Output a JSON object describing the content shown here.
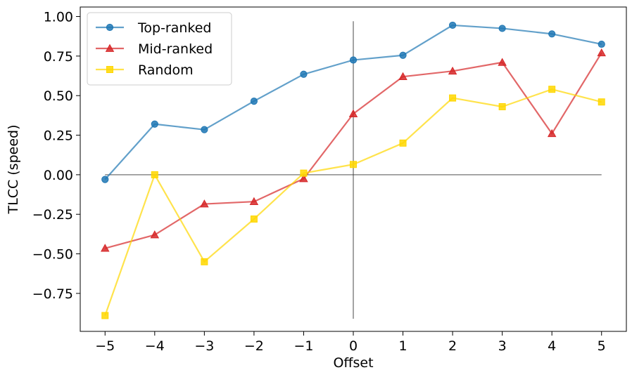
{
  "chart_data": {
    "type": "line",
    "xlabel": "Offset",
    "ylabel": "TLCC (speed)",
    "x": [
      -5,
      -4,
      -3,
      -2,
      -1,
      0,
      1,
      2,
      3,
      4,
      5
    ],
    "x_tick_labels": [
      "−5",
      "−4",
      "−3",
      "−2",
      "−1",
      "0",
      "1",
      "2",
      "3",
      "4",
      "5"
    ],
    "y_ticks": [
      -0.75,
      -0.5,
      -0.25,
      0.0,
      0.25,
      0.5,
      0.75,
      1.0
    ],
    "y_tick_labels": [
      "−0.75",
      "−0.50",
      "−0.25",
      "0.00",
      "0.25",
      "0.50",
      "0.75",
      "1.00"
    ],
    "xlim": [
      -5.5,
      5.5
    ],
    "ylim": [
      -0.99,
      1.06
    ],
    "grid": false,
    "legend_position": "top-left",
    "reference_lines": {
      "horizontal_y": 0.0,
      "vertical_x": 0,
      "color": "#333333"
    },
    "series": [
      {
        "name": "Top-ranked",
        "color": "#1f77b4",
        "marker": "circle",
        "values": [
          -0.03,
          0.32,
          0.285,
          0.465,
          0.635,
          0.725,
          0.755,
          0.945,
          0.925,
          0.89,
          0.825
        ]
      },
      {
        "name": "Mid-ranked",
        "color": "#d62728",
        "marker": "triangle",
        "values": [
          -0.465,
          -0.38,
          -0.185,
          -0.17,
          -0.025,
          0.385,
          0.62,
          0.655,
          0.71,
          0.26,
          0.77
        ]
      },
      {
        "name": "Random",
        "color": "#ffd700",
        "marker": "square",
        "values": [
          -0.89,
          0.0,
          -0.55,
          -0.28,
          0.01,
          0.065,
          0.2,
          0.485,
          0.43,
          0.54,
          0.46
        ]
      }
    ]
  }
}
